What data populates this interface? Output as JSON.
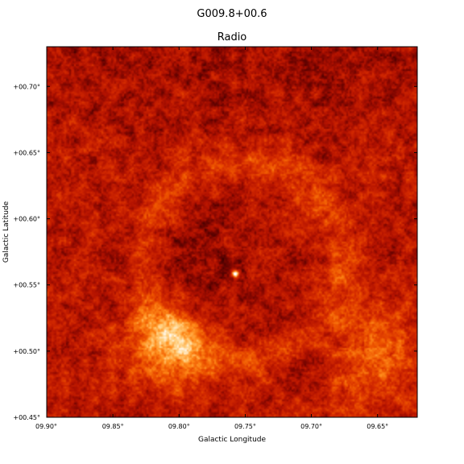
{
  "chart_data": {
    "type": "heatmap",
    "suptitle": "G009.8+00.6",
    "title": "Radio",
    "xlabel": "Galactic Longitude",
    "ylabel": "Galactic Latitude",
    "xlim": [
      9.9,
      9.62
    ],
    "ylim": [
      0.45,
      0.73
    ],
    "x_ticks": [
      9.9,
      9.85,
      9.8,
      9.75,
      9.7,
      9.65
    ],
    "x_tick_labels": [
      "09.90°",
      "09.85°",
      "09.80°",
      "09.75°",
      "09.70°",
      "09.65°"
    ],
    "y_ticks": [
      0.45,
      0.5,
      0.55,
      0.6,
      0.65,
      0.7
    ],
    "y_tick_labels": [
      "+00.45°",
      "+00.50°",
      "+00.55°",
      "+00.60°",
      "+00.65°",
      "+00.70°"
    ],
    "colormap": [
      "#3a0000",
      "#7a0500",
      "#b31200",
      "#d42a00",
      "#ee5500",
      "#ff8c1a",
      "#ffd080",
      "#ffffff"
    ],
    "background_level": 0.32,
    "features": [
      {
        "kind": "shell",
        "center": [
          9.752,
          0.568
        ],
        "radius_deg": 0.075,
        "intensity": 0.28
      },
      {
        "kind": "bright-arc",
        "center": [
          9.81,
          0.505
        ],
        "radius_deg": 0.03,
        "intensity": 0.45
      },
      {
        "kind": "bright-patch",
        "center": [
          9.655,
          0.495
        ],
        "radius_deg": 0.035,
        "intensity": 0.3
      },
      {
        "kind": "point-source",
        "center": [
          9.758,
          0.559
        ],
        "radius_deg": 0.002,
        "intensity": 1.0
      },
      {
        "kind": "dark-region",
        "center": [
          9.79,
          0.57
        ],
        "radius_deg": 0.05,
        "intensity": -0.12
      },
      {
        "kind": "dark-lane",
        "center": [
          9.7,
          0.5
        ],
        "radius_deg": 0.025,
        "intensity": -0.15
      }
    ]
  }
}
